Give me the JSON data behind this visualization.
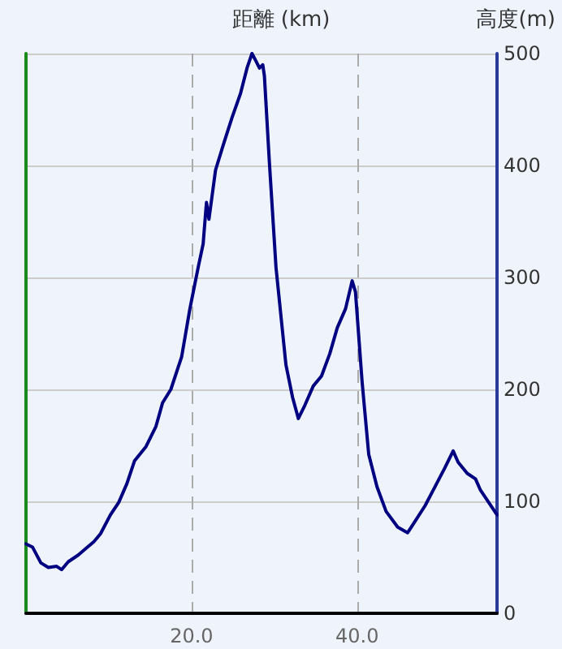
{
  "chart_data": {
    "type": "line",
    "xlabel": "距離 (km)",
    "ylabel": "高度(m)",
    "x": [
      0,
      0.8,
      1.8,
      2.7,
      3.7,
      4.3,
      5.1,
      6.3,
      7.1,
      8.2,
      9.0,
      10.2,
      11.2,
      12.2,
      13.1,
      14.5,
      15.7,
      16.5,
      17.5,
      18.8,
      19.8,
      20.8,
      21.4,
      21.8,
      22.1,
      22.9,
      23.9,
      24.9,
      25.9,
      26.7,
      27.3,
      27.8,
      28.2,
      28.6,
      28.8,
      29.4,
      30.2,
      31.4,
      32.2,
      32.9,
      33.7,
      34.7,
      35.7,
      36.7,
      37.6,
      38.6,
      39.4,
      39.8,
      40.6,
      41.4,
      42.4,
      43.5,
      44.9,
      46.1,
      46.9,
      48.2,
      49.4,
      50.6,
      51.6,
      52.2,
      53.3,
      54.3,
      54.9,
      55.9,
      56.9
    ],
    "series": [
      {
        "color": "#000080",
        "values": [
          62,
          59,
          45,
          41,
          42,
          39,
          46,
          52,
          57,
          64,
          71,
          88,
          99,
          116,
          136,
          149,
          167,
          188,
          200,
          229,
          272,
          309,
          330,
          367,
          352,
          396,
          420,
          443,
          464,
          487,
          500,
          493,
          487,
          490,
          480,
          403,
          309,
          222,
          193,
          174,
          186,
          203,
          212,
          232,
          255,
          272,
          297,
          287,
          207,
          142,
          113,
          91,
          77,
          72,
          81,
          96,
          113,
          130,
          145,
          135,
          125,
          120,
          110,
          99,
          88
        ]
      }
    ],
    "xlim": [
      0,
      56.9
    ],
    "xticks": [
      {
        "value": 20,
        "label": "20.0"
      },
      {
        "value": 40,
        "label": "40.0"
      }
    ],
    "ylim": [
      0,
      500
    ],
    "yticks": [
      0,
      100,
      200,
      300,
      400,
      500
    ],
    "grid": true,
    "marker": "none",
    "line_style": "solid"
  }
}
